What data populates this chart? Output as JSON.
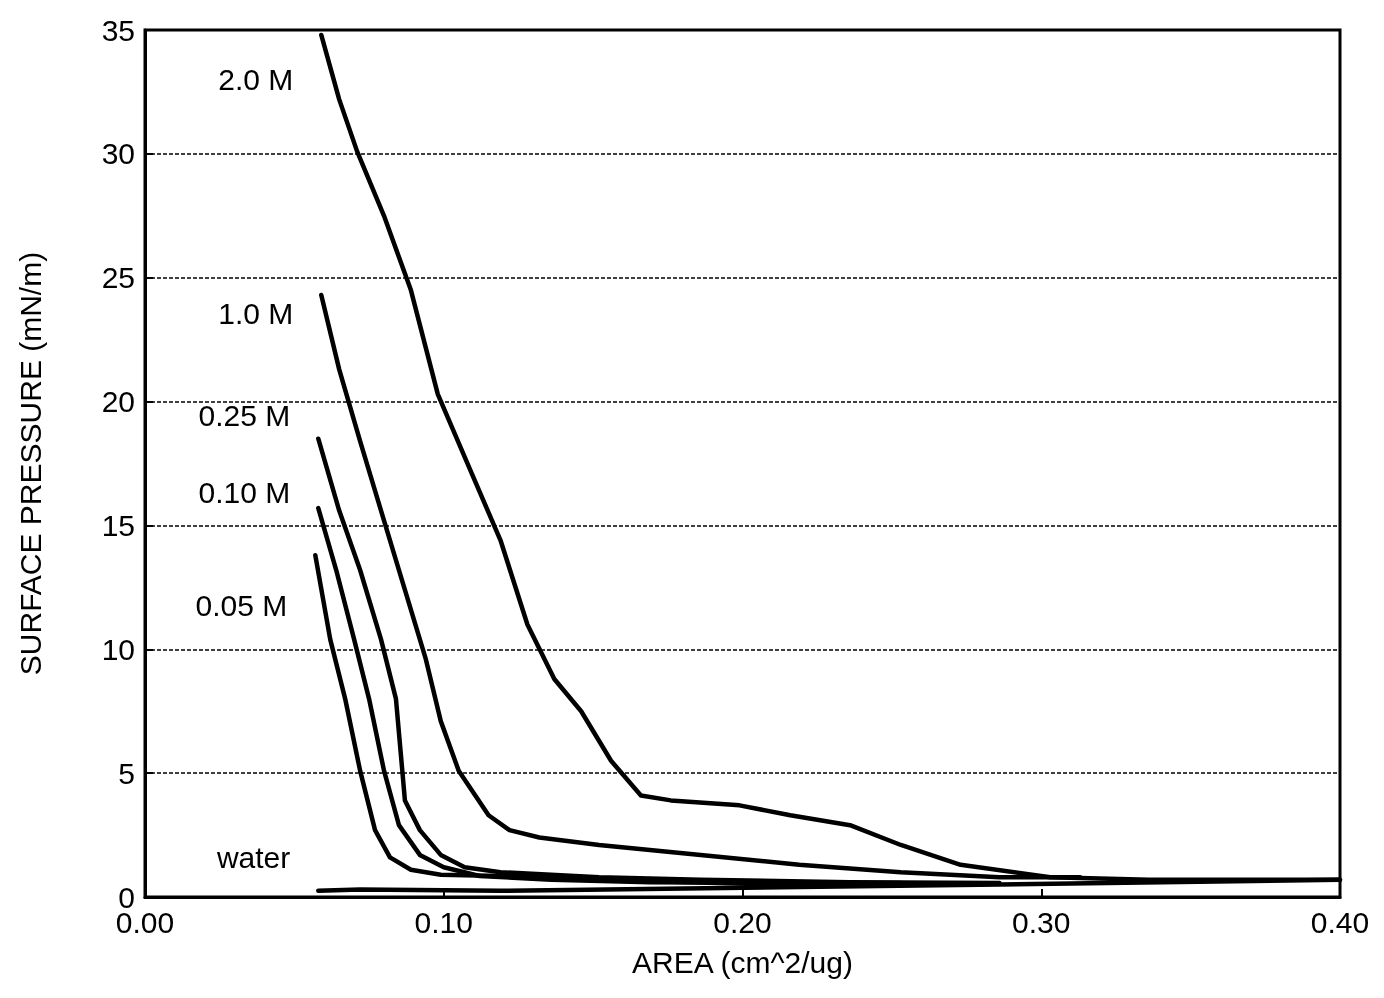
{
  "chart_data": {
    "type": "line",
    "xlabel": "AREA (cm^2/ug)",
    "ylabel": "SURFACE PRESSURE (mN/m)",
    "xlim": [
      0,
      0.4
    ],
    "ylim": [
      0,
      35
    ],
    "xticks": [
      {
        "value": 0,
        "label": "0.00"
      },
      {
        "value": 0.1,
        "label": "0.10"
      },
      {
        "value": 0.2,
        "label": "0.20"
      },
      {
        "value": 0.3,
        "label": "0.30"
      },
      {
        "value": 0.4,
        "label": "0.40"
      }
    ],
    "yticks": [
      0,
      5,
      10,
      15,
      20,
      25,
      30,
      35
    ],
    "grid": "y",
    "marker": "none",
    "line_style": "solid",
    "series": [
      {
        "name": "2.0 M",
        "color": "#000000",
        "x": [
          0.059,
          0.065,
          0.071,
          0.08,
          0.089,
          0.098,
          0.109,
          0.119,
          0.128,
          0.137,
          0.146,
          0.156,
          0.166,
          0.176,
          0.199,
          0.216,
          0.236,
          0.253,
          0.273,
          0.303,
          0.336,
          0.4
        ],
        "values": [
          34.8,
          32.2,
          30.1,
          27.5,
          24.5,
          20.3,
          17.2,
          14.4,
          11.0,
          8.8,
          7.5,
          5.5,
          4.1,
          3.9,
          3.7,
          3.3,
          2.9,
          2.1,
          1.3,
          0.8,
          0.7,
          0.7
        ]
      },
      {
        "name": "1.0 M",
        "color": "#000000",
        "x": [
          0.059,
          0.065,
          0.072,
          0.079,
          0.087,
          0.094,
          0.099,
          0.105,
          0.115,
          0.122,
          0.132,
          0.152,
          0.186,
          0.219,
          0.253,
          0.286,
          0.313
        ],
        "values": [
          24.3,
          21.3,
          18.4,
          15.6,
          12.4,
          9.6,
          7.1,
          5.1,
          3.3,
          2.7,
          2.4,
          2.1,
          1.7,
          1.3,
          1.0,
          0.8,
          0.8
        ]
      },
      {
        "name": "0.25 M",
        "color": "#000000",
        "x": [
          0.058,
          0.065,
          0.072,
          0.079,
          0.084,
          0.087,
          0.092,
          0.099,
          0.107,
          0.119,
          0.152,
          0.186,
          0.236,
          0.286
        ],
        "values": [
          18.5,
          15.6,
          13.2,
          10.4,
          8.0,
          3.9,
          2.7,
          1.7,
          1.2,
          1.0,
          0.8,
          0.7,
          0.6,
          0.57
        ]
      },
      {
        "name": "0.10 M",
        "color": "#000000",
        "x": [
          0.058,
          0.064,
          0.07,
          0.075,
          0.08,
          0.085,
          0.092,
          0.1,
          0.112,
          0.136,
          0.169,
          0.219,
          0.253
        ],
        "values": [
          15.7,
          13.2,
          10.4,
          8.0,
          5.1,
          2.9,
          1.7,
          1.2,
          0.85,
          0.7,
          0.6,
          0.57,
          0.57
        ]
      },
      {
        "name": "0.05 M",
        "color": "#000000",
        "x": [
          0.057,
          0.062,
          0.067,
          0.072,
          0.077,
          0.082,
          0.089,
          0.099,
          0.119,
          0.152,
          0.213,
          0.253
        ],
        "values": [
          13.8,
          10.4,
          8.0,
          5.1,
          2.7,
          1.6,
          1.1,
          0.9,
          0.85,
          0.7,
          0.5,
          0.5
        ]
      },
      {
        "name": "water",
        "color": "#000000",
        "x": [
          0.058,
          0.072,
          0.119,
          0.219,
          0.286,
          0.4
        ],
        "values": [
          0.25,
          0.3,
          0.25,
          0.4,
          0.5,
          0.7
        ]
      }
    ]
  }
}
